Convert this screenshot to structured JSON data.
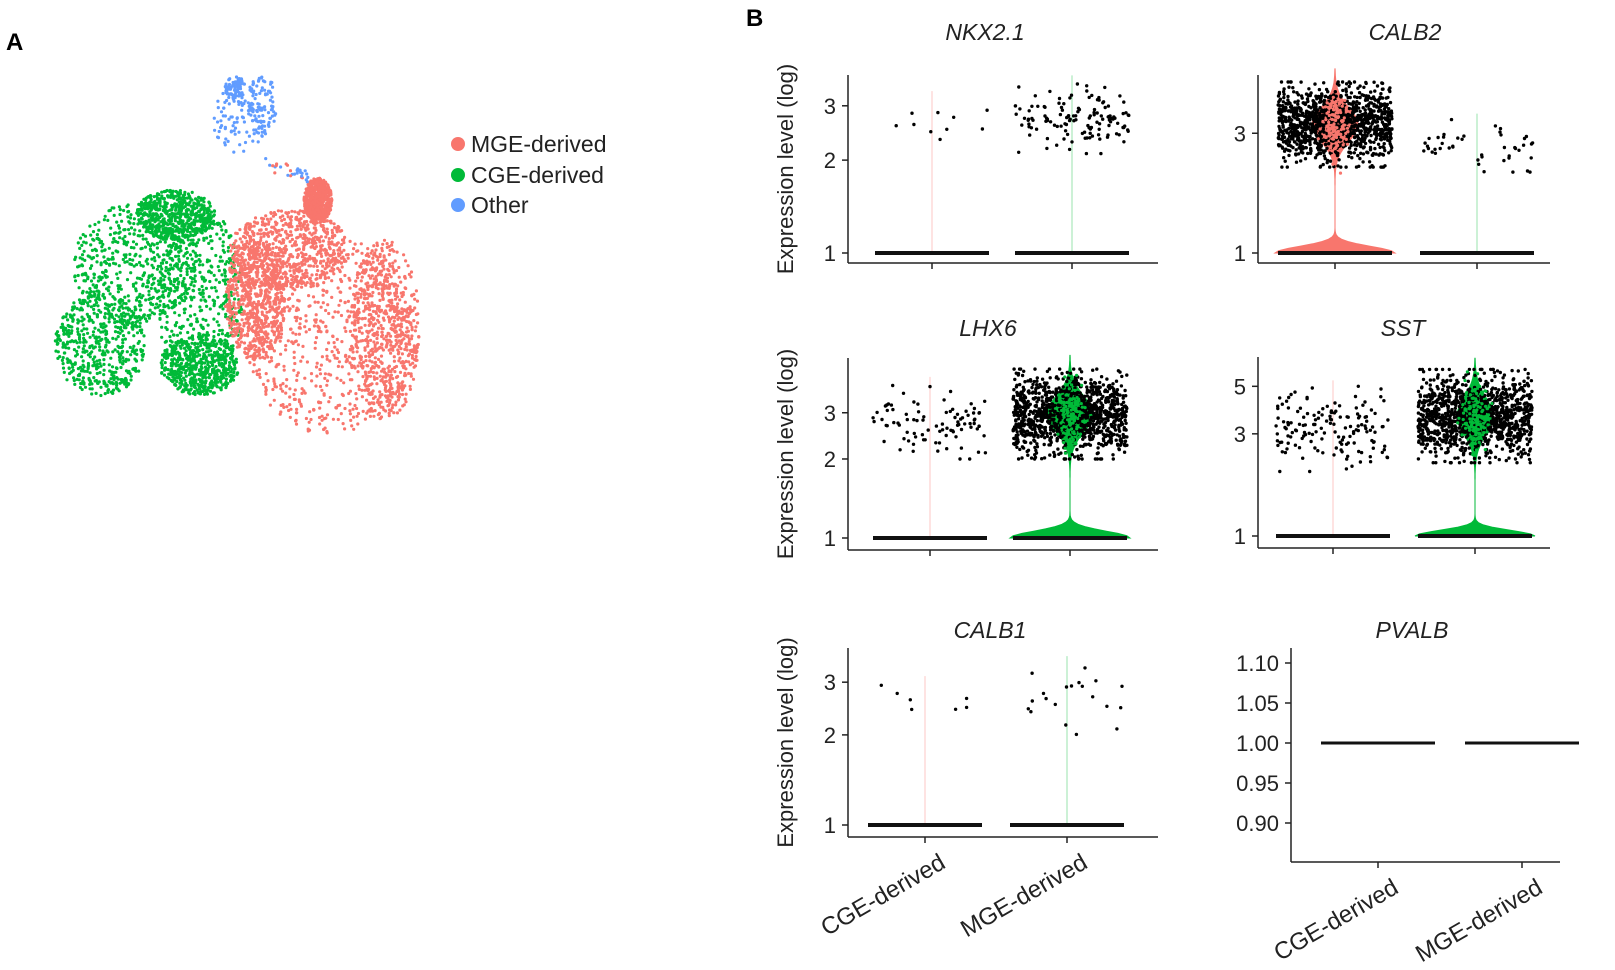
{
  "figure": {
    "panel_a_label": "A",
    "panel_b_label": "B"
  },
  "chart_data": [
    {
      "type": "scatter",
      "panel": "A",
      "axes_visible": false,
      "legend": {
        "position": "right",
        "entries": [
          {
            "label": "MGE-derived",
            "color": "#F8766D"
          },
          {
            "label": "CGE-derived",
            "color": "#00BA38"
          },
          {
            "label": "Other",
            "color": "#619CFF"
          }
        ]
      }
    },
    {
      "type": "violin",
      "panel": "B",
      "title": "NKX2.1",
      "ylabel": "Expression level (log)",
      "yscale": "log",
      "yticks": [
        "1",
        "2",
        "3"
      ],
      "ytick_values": [
        1,
        2,
        3
      ],
      "ylim": [
        1,
        3.8
      ],
      "categories": [
        "CGE-derived",
        "MGE-derived"
      ],
      "xticklabels_shown": false,
      "groups": [
        {
          "category": "CGE-derived",
          "color": "#F8766D",
          "expressing_points": 10,
          "expressed_range": [
            2.3,
            3.2
          ],
          "violin_visible": false
        },
        {
          "category": "MGE-derived",
          "color": "#00BA38",
          "expressing_points": 130,
          "expressed_range": [
            2.1,
            3.6
          ],
          "violin_visible": false
        }
      ]
    },
    {
      "type": "violin",
      "panel": "B",
      "title": "CALB2",
      "ylabel": "",
      "yscale": "log",
      "yticks": [
        "1",
        "3"
      ],
      "ytick_values": [
        1,
        3
      ],
      "ylim": [
        1,
        5.1
      ],
      "categories": [
        "CGE-derived",
        "MGE-derived"
      ],
      "xticklabels_shown": false,
      "groups": [
        {
          "category": "CGE-derived",
          "color": "#F8766D",
          "expressing_points": 1500,
          "expressed_range": [
            2.2,
            4.8
          ],
          "violin_visible": true
        },
        {
          "category": "MGE-derived",
          "color": "#00BA38",
          "expressing_points": 45,
          "expressed_range": [
            2.1,
            3.4
          ],
          "violin_visible": false
        }
      ]
    },
    {
      "type": "violin",
      "panel": "B",
      "title": "LHX6",
      "ylabel": "Expression level (log)",
      "yscale": "log",
      "yticks": [
        "1",
        "2",
        "3"
      ],
      "ytick_values": [
        1,
        2,
        3
      ],
      "ylim": [
        1,
        5.1
      ],
      "categories": [
        "CGE-derived",
        "MGE-derived"
      ],
      "xticklabels_shown": false,
      "groups": [
        {
          "category": "CGE-derived",
          "color": "#F8766D",
          "expressing_points": 90,
          "expressed_range": [
            2.0,
            3.9
          ],
          "violin_visible": false
        },
        {
          "category": "MGE-derived",
          "color": "#00BA38",
          "expressing_points": 1500,
          "expressed_range": [
            2.0,
            4.4
          ],
          "violin_visible": true
        }
      ]
    },
    {
      "type": "violin",
      "panel": "B",
      "title": "SST",
      "ylabel": "",
      "yscale": "log",
      "yticks": [
        "1",
        "3",
        "5"
      ],
      "ytick_values": [
        1,
        3,
        5
      ],
      "ylim": [
        1,
        6.8
      ],
      "categories": [
        "CGE-derived",
        "MGE-derived"
      ],
      "xticklabels_shown": false,
      "groups": [
        {
          "category": "CGE-derived",
          "color": "#F8766D",
          "expressing_points": 150,
          "expressed_range": [
            2.0,
            5.0
          ],
          "violin_visible": false
        },
        {
          "category": "MGE-derived",
          "color": "#00BA38",
          "expressing_points": 1500,
          "expressed_range": [
            2.2,
            6.0
          ],
          "violin_visible": true
        }
      ]
    },
    {
      "type": "violin",
      "panel": "B",
      "title": "CALB1",
      "ylabel": "Expression level (log)",
      "yscale": "log",
      "yticks": [
        "1",
        "2",
        "3"
      ],
      "ytick_values": [
        1,
        2,
        3
      ],
      "ylim": [
        1,
        3.9
      ],
      "categories": [
        "CGE-derived",
        "MGE-derived"
      ],
      "xticklabels_shown": true,
      "groups": [
        {
          "category": "CGE-derived",
          "color": "#F8766D",
          "expressing_points": 7,
          "expressed_range": [
            2.2,
            3.0
          ],
          "violin_visible": false
        },
        {
          "category": "MGE-derived",
          "color": "#00BA38",
          "expressing_points": 20,
          "expressed_range": [
            2.0,
            3.5
          ],
          "violin_visible": false
        }
      ]
    },
    {
      "type": "violin",
      "panel": "B",
      "title": "PVALB",
      "ylabel": "",
      "yscale": "linear",
      "yticks": [
        "1.10",
        "1.05",
        "1.00",
        "0.95",
        "0.90"
      ],
      "ytick_values": [
        1.1,
        1.05,
        1.0,
        0.95,
        0.9
      ],
      "ylim": [
        0.89,
        1.11
      ],
      "categories": [
        "CGE-derived",
        "MGE-derived"
      ],
      "xticklabels_shown": true,
      "groups": [
        {
          "category": "CGE-derived",
          "color": "#F8766D",
          "expressing_points": 0,
          "expressed_range": [
            1.0,
            1.0
          ],
          "violin_visible": false
        },
        {
          "category": "MGE-derived",
          "color": "#00BA38",
          "expressing_points": 0,
          "expressed_range": [
            1.0,
            1.0
          ],
          "violin_visible": false
        }
      ]
    }
  ]
}
